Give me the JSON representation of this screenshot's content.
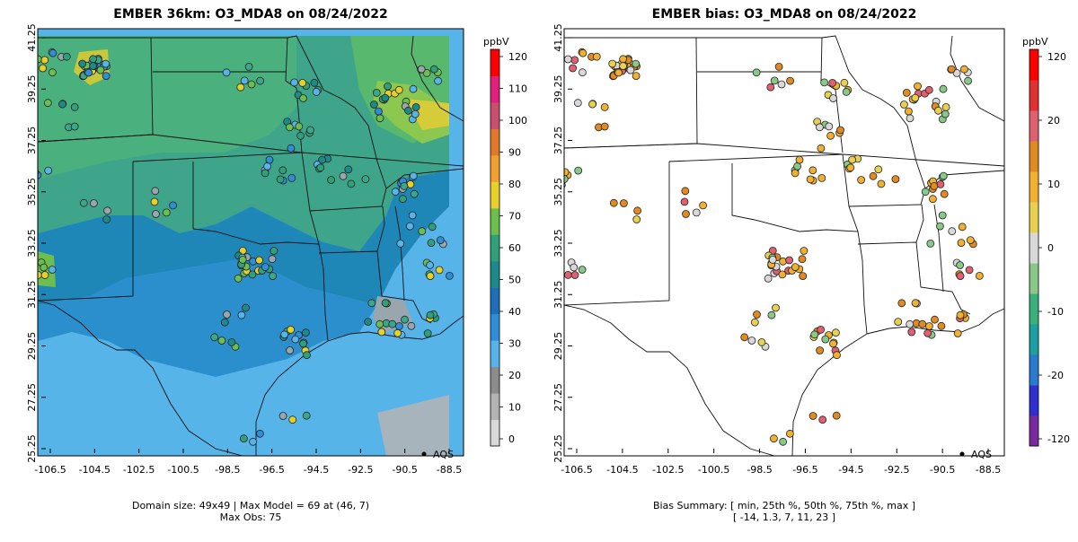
{
  "left_panel": {
    "title": "EMBER 36km: O3_MDA8 on 08/24/2022",
    "colorbar_unit": "ppbV",
    "colorbar_ticks": [
      "0",
      "10",
      "20",
      "30",
      "40",
      "50",
      "60",
      "70",
      "80",
      "90",
      "100",
      "110",
      "120"
    ],
    "colorbar_colors": [
      "#d9d9d9",
      "#b3b3b3",
      "#8c8c8c",
      "#56b4e9",
      "#2e8fd8",
      "#1f6fb8",
      "#1c8a8a",
      "#2fa07a",
      "#6cbf4e",
      "#e6d02a",
      "#f0a030",
      "#e07a2a",
      "#c8506e",
      "#e0207a",
      "#ff0000"
    ],
    "legend_label": "AQS",
    "footer_line1": "Domain size: 49x49 | Max Model = 69 at (46, 7)",
    "footer_line2": "Max Obs: 75"
  },
  "right_panel": {
    "title": "EMBER bias: O3_MDA8 on 08/24/2022",
    "colorbar_unit": "ppbV",
    "colorbar_ticks": [
      "-120",
      "-20",
      "-10",
      "0",
      "10",
      "20",
      "120"
    ],
    "colorbar_colors": [
      "#7a2aa0",
      "#3030d0",
      "#2a7ad0",
      "#1aa0a0",
      "#3ab07a",
      "#88c888",
      "#d8d8d8",
      "#e8d050",
      "#f0b030",
      "#e08a20",
      "#e06070",
      "#e03030",
      "#ff0000"
    ],
    "legend_label": "AQS",
    "footer_line1": "Bias Summary: [ min, 25th %, 50th %, 75th %, max ]",
    "footer_line2": "[ -14,   1.3,   7,   11,   23 ]"
  },
  "axes": {
    "x_ticks": [
      "-106.5",
      "-104.5",
      "-102.5",
      "-100.5",
      "-98.5",
      "-96.5",
      "-94.5",
      "-92.5",
      "-90.5",
      "-88.5"
    ],
    "y_ticks": [
      "41.25",
      "39.25",
      "37.25",
      "35.25",
      "33.25",
      "31.25",
      "29.25",
      "27.25",
      "25.25"
    ]
  }
}
